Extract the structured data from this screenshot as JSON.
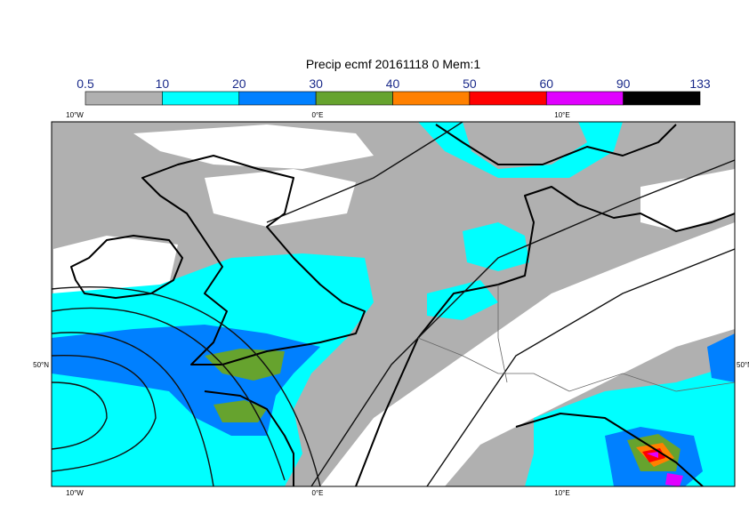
{
  "title": "Precip ecmf 20161118 0 Mem:1",
  "legend": {
    "levels": [
      "0.5",
      "10",
      "20",
      "30",
      "40",
      "50",
      "60",
      "90",
      "133"
    ],
    "colors": [
      "#b0b0b0",
      "#00ffff",
      "#0080ff",
      "#66a32e",
      "#ff8000",
      "#ff0000",
      "#e000ff",
      "#000000"
    ]
  },
  "lon_labels": [
    "10°W",
    "0°E",
    "10°E"
  ],
  "lat_labels": [
    "50°N"
  ]
}
